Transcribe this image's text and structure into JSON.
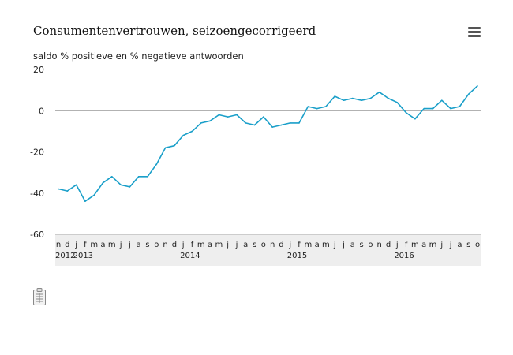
{
  "header": {
    "title": "Consumentenvertrouwen, seizoengecorrigeerd",
    "menu_icon": "hamburger-menu-icon"
  },
  "footer": {
    "icon": "document-table-icon"
  },
  "colors": {
    "line": "#1a9fc9",
    "zero_line": "#999999",
    "axis_band": "#eeeeee"
  },
  "chart_data": {
    "type": "line",
    "title": "Consumentenvertrouwen, seizoengecorrigeerd",
    "ylabel": "saldo % positieve en % negatieve antwoorden",
    "ylim": [
      -60,
      20
    ],
    "yticks": [
      20,
      0,
      -20,
      -40,
      -60
    ],
    "grid": false,
    "legend": "none",
    "x": [
      "2012-11",
      "2012-12",
      "2013-01",
      "2013-02",
      "2013-03",
      "2013-04",
      "2013-05",
      "2013-06",
      "2013-07",
      "2013-08",
      "2013-09",
      "2013-10",
      "2013-11",
      "2013-12",
      "2014-01",
      "2014-02",
      "2014-03",
      "2014-04",
      "2014-05",
      "2014-06",
      "2014-07",
      "2014-08",
      "2014-09",
      "2014-10",
      "2014-11",
      "2014-12",
      "2015-01",
      "2015-02",
      "2015-03",
      "2015-04",
      "2015-05",
      "2015-06",
      "2015-07",
      "2015-08",
      "2015-09",
      "2015-10",
      "2015-11",
      "2015-12",
      "2016-01",
      "2016-02",
      "2016-03",
      "2016-04",
      "2016-05",
      "2016-06",
      "2016-07",
      "2016-08",
      "2016-09",
      "2016-10"
    ],
    "month_labels": [
      "n",
      "d",
      "j",
      "f",
      "m",
      "a",
      "m",
      "j",
      "j",
      "a",
      "s",
      "o",
      "n",
      "d",
      "j",
      "f",
      "m",
      "a",
      "m",
      "j",
      "j",
      "a",
      "s",
      "o",
      "n",
      "d",
      "j",
      "f",
      "m",
      "a",
      "m",
      "j",
      "j",
      "a",
      "s",
      "o",
      "n",
      "d",
      "j",
      "f",
      "m",
      "a",
      "m",
      "j",
      "j",
      "a",
      "s",
      "o"
    ],
    "year_labels": [
      {
        "index": 0,
        "label": "2012"
      },
      {
        "index": 2,
        "label": "2013"
      },
      {
        "index": 14,
        "label": "2014"
      },
      {
        "index": 26,
        "label": "2015"
      },
      {
        "index": 38,
        "label": "2016"
      }
    ],
    "series": [
      {
        "values": [
          -38,
          -39,
          -36,
          -44,
          -41,
          -35,
          -32,
          -36,
          -37,
          -32,
          -32,
          -26,
          -18,
          -17,
          -12,
          -10,
          -6,
          -5,
          -2,
          -3,
          -2,
          -6,
          -7,
          -3,
          -8,
          -7,
          -6,
          -6,
          2,
          1,
          2,
          7,
          5,
          6,
          5,
          6,
          9,
          6,
          4,
          -1,
          -4,
          1,
          1,
          5,
          1,
          2,
          8,
          12
        ]
      }
    ]
  }
}
